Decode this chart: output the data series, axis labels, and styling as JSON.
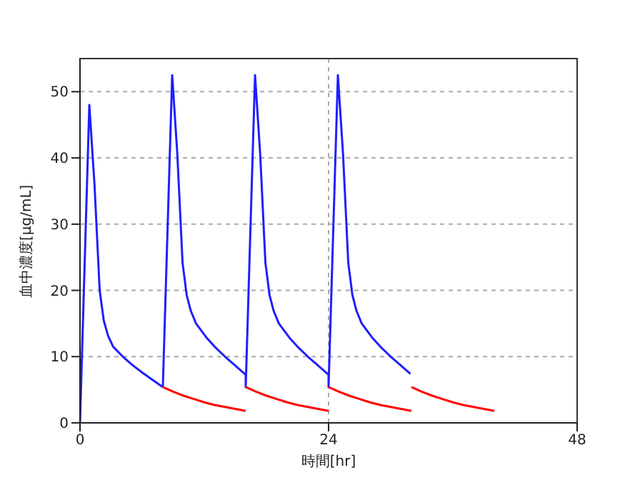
{
  "chart_data": {
    "type": "line",
    "xlabel": "時間[hr]",
    "ylabel": "血中濃度[μg/mL]",
    "xlim": [
      0,
      48
    ],
    "xticks": [
      0,
      24,
      48
    ],
    "ylim": [
      0,
      55
    ],
    "yticks": [
      0,
      10,
      20,
      30,
      40,
      50
    ],
    "grid": true,
    "marker": "none",
    "line_style": "solid",
    "series": [
      {
        "color": "#1f1fff",
        "x": [
          0,
          0.9,
          1.4,
          1.9,
          2.3,
          2.7,
          3.2,
          4.2,
          5,
          6,
          7.9,
          8,
          8.9,
          9.4,
          9.9,
          10.3,
          10.7,
          11.2,
          12.2,
          13,
          14,
          15.9,
          16,
          16,
          16.9,
          17.4,
          17.9,
          18.3,
          18.7,
          19.2,
          20.2,
          21,
          22,
          23.9,
          24,
          24,
          24.9,
          25.4,
          25.9,
          26.3,
          26.7,
          27.2,
          28.2,
          29,
          30,
          31.9
        ],
        "values": [
          0,
          48,
          36,
          20,
          15.4,
          13.2,
          11.5,
          9.9,
          8.8,
          7.6,
          5.5,
          5.5,
          52.5,
          40.5,
          24.2,
          19.3,
          16.9,
          15,
          12.9,
          11.5,
          10,
          7.4,
          7.4,
          5.4,
          52.5,
          40.5,
          24.2,
          19.3,
          16.9,
          15,
          12.9,
          11.5,
          10,
          7.4,
          7.4,
          5.4,
          52.5,
          40.5,
          24.2,
          19.3,
          16.9,
          15,
          12.9,
          11.5,
          10,
          7.4
        ]
      },
      {
        "color": "#ff0000",
        "x": [
          8,
          9,
          10,
          11,
          12,
          13,
          14,
          15,
          16
        ],
        "values": [
          5.4,
          4.7,
          4.1,
          3.6,
          3.1,
          2.7,
          2.4,
          2.1,
          1.8
        ]
      },
      {
        "color": "#ff0000",
        "x": [
          16,
          17,
          18,
          19,
          20,
          21,
          22,
          23,
          24
        ],
        "values": [
          5.4,
          4.7,
          4.1,
          3.6,
          3.1,
          2.7,
          2.4,
          2.1,
          1.8
        ]
      },
      {
        "color": "#ff0000",
        "x": [
          24,
          25,
          26,
          27,
          28,
          29,
          30,
          31,
          32
        ],
        "values": [
          5.4,
          4.7,
          4.1,
          3.6,
          3.1,
          2.7,
          2.4,
          2.1,
          1.8
        ]
      },
      {
        "color": "#ff0000",
        "x": [
          32,
          33,
          34,
          35,
          36,
          37,
          38,
          39,
          40
        ],
        "values": [
          5.4,
          4.7,
          4.1,
          3.6,
          3.1,
          2.7,
          2.4,
          2.1,
          1.8
        ]
      }
    ]
  }
}
